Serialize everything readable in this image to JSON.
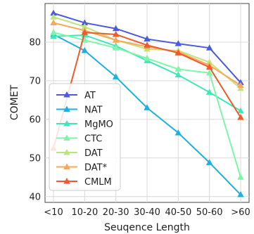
{
  "chart_data": {
    "type": "line",
    "title": "",
    "xlabel": "Seuqence Length",
    "ylabel": "COMET",
    "categories": [
      "<10",
      "10-20",
      "20-30",
      "30-40",
      "40-50",
      "50-60",
      ">60"
    ],
    "ylim": [
      38.5,
      90
    ],
    "yticks": [
      40,
      50,
      60,
      70,
      80
    ],
    "grid": true,
    "legend_position": "bottom-left",
    "series": [
      {
        "name": "AT",
        "color": "#4b5bdc",
        "marker": "triangle",
        "values": [
          87.5,
          85.0,
          83.5,
          80.8,
          79.6,
          78.5,
          69.5
        ]
      },
      {
        "name": "NAT",
        "color": "#1eb0e0",
        "marker": "triangle",
        "values": [
          82.0,
          77.8,
          71.0,
          63.0,
          56.5,
          48.8,
          40.5
        ]
      },
      {
        "name": "MgMO",
        "color": "#3de8b8",
        "marker": "triangle",
        "values": [
          81.5,
          81.8,
          79.0,
          75.2,
          71.5,
          67.0,
          62.2
        ]
      },
      {
        "name": "CTC",
        "color": "#7ff5a8",
        "marker": "triangle",
        "values": [
          82.5,
          80.5,
          78.5,
          75.8,
          73.0,
          72.0,
          45.0
        ]
      },
      {
        "name": "DAT",
        "color": "#bfe57a",
        "marker": "triangle",
        "values": [
          86.5,
          84.0,
          80.5,
          78.2,
          77.8,
          74.8,
          68.0
        ]
      },
      {
        "name": "DAT*",
        "color": "#f9a85a",
        "marker": "triangle",
        "values": [
          85.0,
          83.0,
          80.5,
          78.8,
          77.5,
          74.0,
          68.8
        ]
      },
      {
        "name": "CMLM",
        "color": "#ef5a2c",
        "marker": "triangle",
        "values": [
          52.5,
          82.5,
          82.0,
          79.2,
          77.2,
          73.5,
          60.5
        ]
      }
    ]
  }
}
